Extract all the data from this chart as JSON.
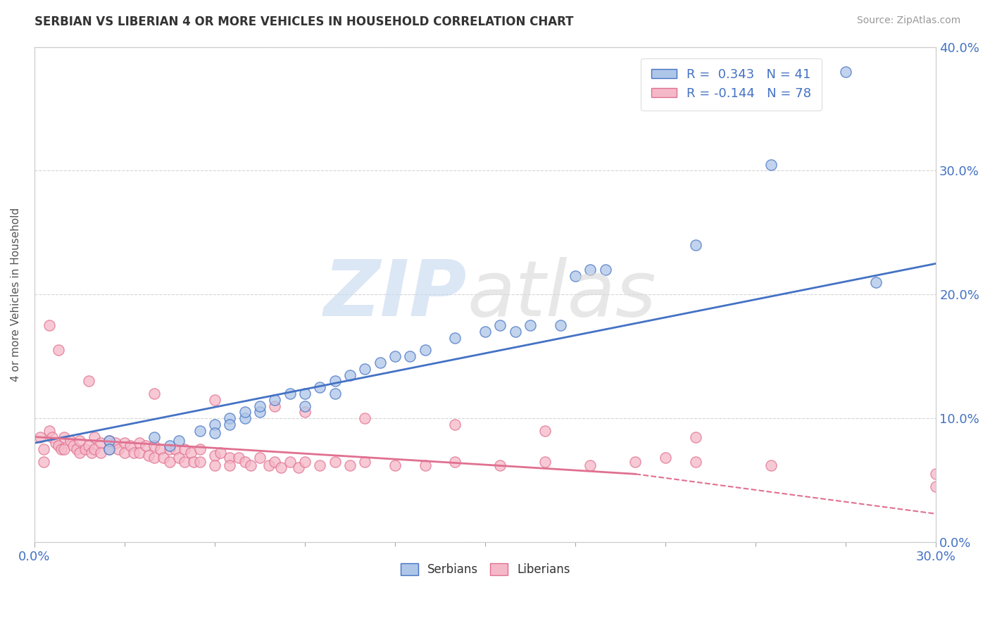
{
  "title": "SERBIAN VS LIBERIAN 4 OR MORE VEHICLES IN HOUSEHOLD CORRELATION CHART",
  "source": "Source: ZipAtlas.com",
  "ylabel_label": "4 or more Vehicles in Household",
  "xlim": [
    0.0,
    0.3
  ],
  "ylim": [
    0.0,
    0.4
  ],
  "serbian_color": "#aec6e8",
  "liberian_color": "#f5b8c8",
  "serbian_edge_color": "#4472c4",
  "liberian_edge_color": "#e07090",
  "serbian_line_color": "#4472c4",
  "liberian_line_color": "#e07090",
  "watermark_zip": "ZIP",
  "watermark_atlas": "atlas",
  "serbian_line": [
    0.0,
    0.3,
    0.08,
    0.225
  ],
  "liberian_line_solid": [
    0.0,
    0.2,
    0.085,
    0.055
  ],
  "liberian_line_dashed": [
    0.2,
    0.34,
    0.055,
    0.01
  ],
  "serbian_scatter_x": [
    0.025,
    0.025,
    0.04,
    0.045,
    0.048,
    0.055,
    0.06,
    0.06,
    0.065,
    0.065,
    0.07,
    0.07,
    0.075,
    0.075,
    0.08,
    0.085,
    0.09,
    0.09,
    0.095,
    0.1,
    0.1,
    0.105,
    0.11,
    0.115,
    0.12,
    0.125,
    0.13,
    0.14,
    0.15,
    0.155,
    0.16,
    0.165,
    0.175,
    0.18,
    0.185,
    0.19,
    0.22,
    0.225,
    0.245,
    0.27,
    0.28
  ],
  "serbian_scatter_y": [
    0.082,
    0.075,
    0.085,
    0.078,
    0.082,
    0.09,
    0.095,
    0.088,
    0.1,
    0.095,
    0.1,
    0.105,
    0.105,
    0.11,
    0.115,
    0.12,
    0.11,
    0.12,
    0.125,
    0.13,
    0.12,
    0.135,
    0.14,
    0.145,
    0.15,
    0.15,
    0.155,
    0.165,
    0.17,
    0.175,
    0.17,
    0.175,
    0.175,
    0.215,
    0.22,
    0.22,
    0.24,
    0.36,
    0.305,
    0.38,
    0.21
  ],
  "liberian_scatter_x": [
    0.002,
    0.003,
    0.003,
    0.005,
    0.006,
    0.007,
    0.008,
    0.009,
    0.01,
    0.01,
    0.012,
    0.013,
    0.014,
    0.015,
    0.015,
    0.017,
    0.018,
    0.019,
    0.02,
    0.02,
    0.022,
    0.022,
    0.025,
    0.025,
    0.027,
    0.028,
    0.03,
    0.03,
    0.032,
    0.033,
    0.035,
    0.035,
    0.037,
    0.038,
    0.04,
    0.04,
    0.042,
    0.043,
    0.045,
    0.045,
    0.047,
    0.048,
    0.05,
    0.05,
    0.052,
    0.053,
    0.055,
    0.055,
    0.06,
    0.06,
    0.062,
    0.065,
    0.065,
    0.068,
    0.07,
    0.072,
    0.075,
    0.078,
    0.08,
    0.082,
    0.085,
    0.088,
    0.09,
    0.095,
    0.1,
    0.105,
    0.11,
    0.12,
    0.13,
    0.14,
    0.155,
    0.17,
    0.185,
    0.2,
    0.21,
    0.22,
    0.245,
    0.3
  ],
  "liberian_scatter_y": [
    0.085,
    0.075,
    0.065,
    0.09,
    0.085,
    0.08,
    0.078,
    0.075,
    0.085,
    0.075,
    0.082,
    0.078,
    0.075,
    0.082,
    0.072,
    0.075,
    0.078,
    0.072,
    0.085,
    0.075,
    0.08,
    0.072,
    0.082,
    0.075,
    0.08,
    0.075,
    0.08,
    0.072,
    0.078,
    0.072,
    0.08,
    0.072,
    0.078,
    0.07,
    0.078,
    0.068,
    0.075,
    0.068,
    0.075,
    0.065,
    0.075,
    0.068,
    0.075,
    0.065,
    0.072,
    0.065,
    0.075,
    0.065,
    0.07,
    0.062,
    0.072,
    0.068,
    0.062,
    0.068,
    0.065,
    0.062,
    0.068,
    0.062,
    0.065,
    0.06,
    0.065,
    0.06,
    0.065,
    0.062,
    0.065,
    0.062,
    0.065,
    0.062,
    0.062,
    0.065,
    0.062,
    0.065,
    0.062,
    0.065,
    0.068,
    0.065,
    0.062,
    0.045
  ],
  "liberian_outlier_x": [
    0.005,
    0.008,
    0.018,
    0.04,
    0.06,
    0.08,
    0.09,
    0.11,
    0.14,
    0.17,
    0.22,
    0.3
  ],
  "liberian_outlier_y": [
    0.175,
    0.155,
    0.13,
    0.12,
    0.115,
    0.11,
    0.105,
    0.1,
    0.095,
    0.09,
    0.085,
    0.055
  ]
}
